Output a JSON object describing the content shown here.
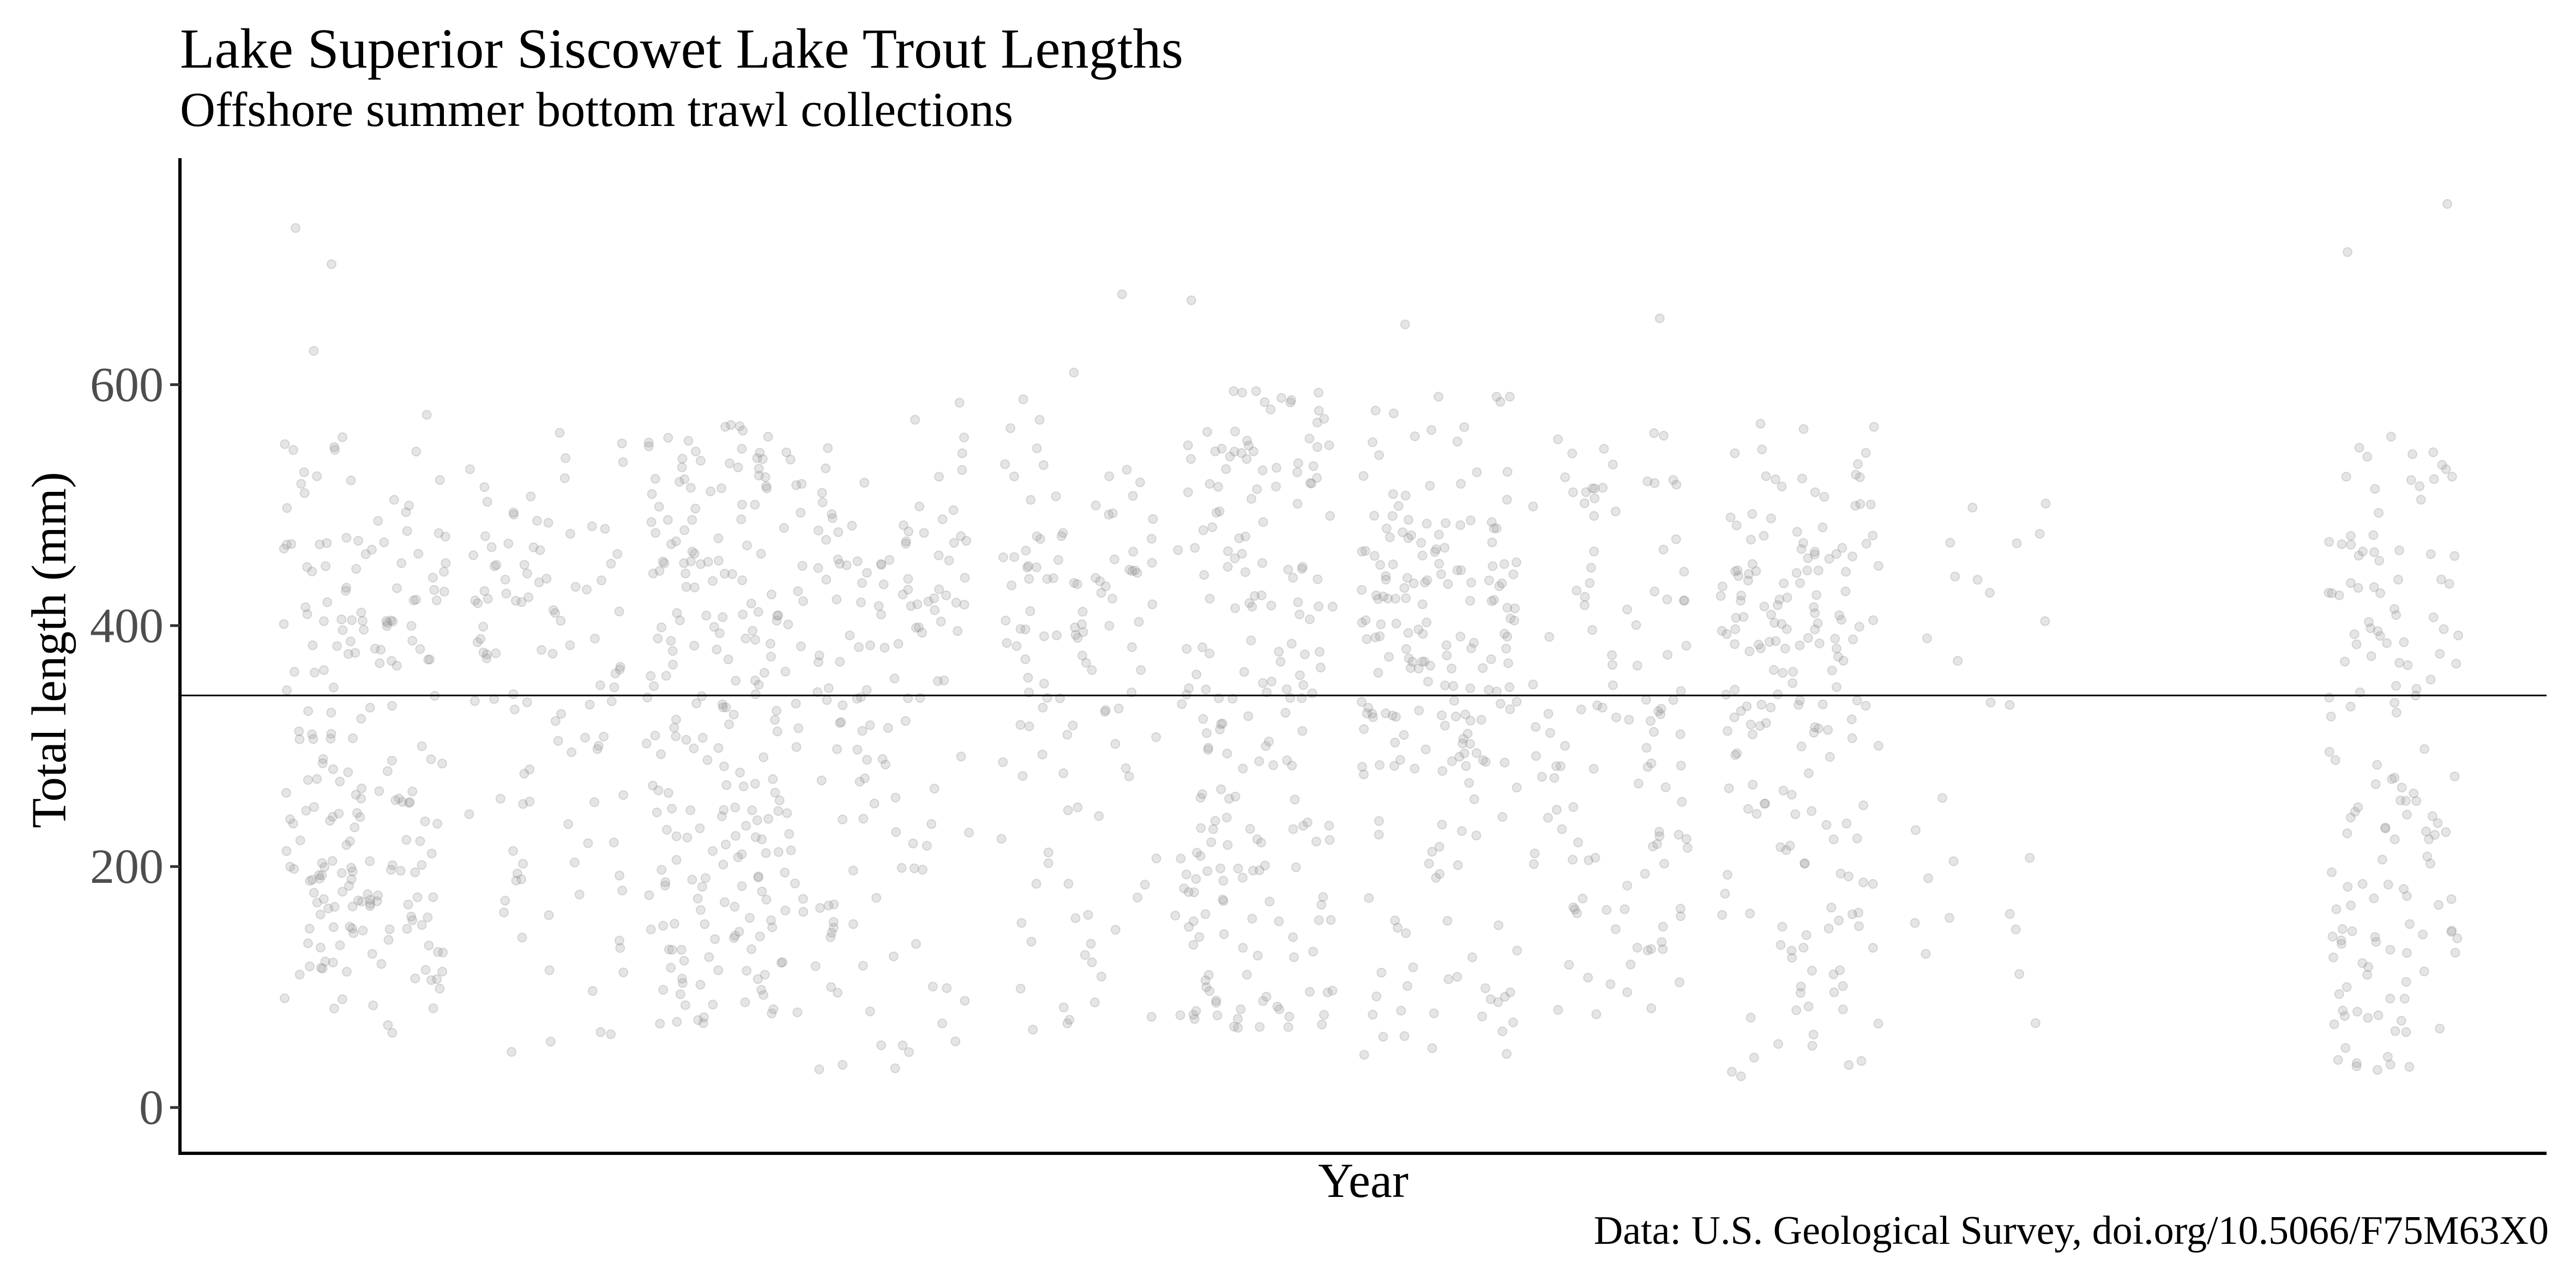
{
  "chart_data": {
    "type": "scatter",
    "title": "Lake Superior Siscowet Lake Trout Lengths",
    "subtitle": "Offshore summer bottom trawl collections",
    "xlabel": "Year",
    "ylabel": "Total length (mm)",
    "caption": "Data: U.S. Geological Survey, doi.org/10.5066/F75M63X0",
    "ylim": [
      -38,
      788
    ],
    "yticks": [
      0,
      200,
      400,
      600
    ],
    "ytick_labels": [
      "0",
      "200",
      "400",
      "600"
    ],
    "x_tick_labels_shown": false,
    "grid": false,
    "point_color": "#999999",
    "point_opacity": 0.25,
    "reference_line": {
      "y": 342,
      "label": ""
    },
    "clusters": [
      {
        "n": 220,
        "min": 62,
        "max": 575,
        "mode": "bimodal",
        "extremes": [
          730,
          700,
          628
        ]
      },
      {
        "n": 110,
        "min": 40,
        "max": 560,
        "mode": "upper",
        "extremes": []
      },
      {
        "n": 240,
        "min": 65,
        "max": 572,
        "mode": "uniform",
        "extremes": []
      },
      {
        "n": 140,
        "min": 28,
        "max": 585,
        "mode": "upper",
        "extremes": []
      },
      {
        "n": 120,
        "min": 60,
        "max": 610,
        "mode": "upper",
        "extremes": [
          675
        ]
      },
      {
        "n": 210,
        "min": 65,
        "max": 595,
        "mode": "uniform",
        "extremes": [
          670
        ]
      },
      {
        "n": 210,
        "min": 40,
        "max": 590,
        "mode": "upper",
        "extremes": [
          650
        ]
      },
      {
        "n": 120,
        "min": 60,
        "max": 560,
        "mode": "uniform",
        "extremes": [
          655
        ]
      },
      {
        "n": 190,
        "min": 25,
        "max": 598,
        "mode": "upper",
        "extremes": []
      },
      {
        "n": 25,
        "min": 65,
        "max": 510,
        "mode": "uniform",
        "extremes": []
      },
      {
        "n": 150,
        "min": 25,
        "max": 560,
        "mode": "uniform",
        "extremes": [
          750,
          710
        ]
      }
    ]
  }
}
